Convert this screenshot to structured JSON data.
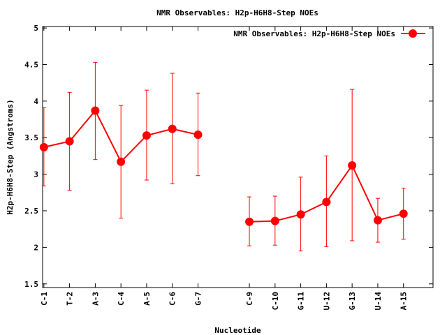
{
  "chart_data": {
    "type": "line",
    "title": "NMR Observables: H2p-H6H8-Step NOEs",
    "xlabel": "Nucleotide",
    "ylabel": "H2p-H6H8-Step (Angstroms)",
    "ylim": [
      1.45,
      5.02
    ],
    "yticks": [
      "1.5",
      "2",
      "2.5",
      "3",
      "3.5",
      "4",
      "4.5",
      "5"
    ],
    "ytick_values": [
      1.5,
      2,
      2.5,
      3,
      3.5,
      4,
      4.5,
      5
    ],
    "xlim": [
      0.95,
      16.15
    ],
    "legend_position": "top-right",
    "grid": false,
    "color": "#ff0000",
    "series": [
      {
        "name": "NMR Observables: H2p-H6H8-Step NOEs",
        "points": [
          {
            "x": 1,
            "label": "C-1",
            "y": 3.37,
            "low": 2.84,
            "high": 3.91
          },
          {
            "x": 2,
            "label": "T-2",
            "y": 3.45,
            "low": 2.78,
            "high": 4.12
          },
          {
            "x": 3,
            "label": "A-3",
            "y": 3.87,
            "low": 3.2,
            "high": 4.53
          },
          {
            "x": 4,
            "label": "C-4",
            "y": 3.17,
            "low": 2.4,
            "high": 3.94
          },
          {
            "x": 5,
            "label": "A-5",
            "y": 3.53,
            "low": 2.92,
            "high": 4.15
          },
          {
            "x": 6,
            "label": "C-6",
            "y": 3.62,
            "low": 2.87,
            "high": 4.38
          },
          {
            "x": 7,
            "label": "G-7",
            "y": 3.54,
            "low": 2.98,
            "high": 4.11
          },
          {
            "x": 9,
            "label": "C-9",
            "y": 2.35,
            "low": 2.02,
            "high": 2.69
          },
          {
            "x": 10,
            "label": "C-10",
            "y": 2.36,
            "low": 2.03,
            "high": 2.7
          },
          {
            "x": 11,
            "label": "G-11",
            "y": 2.45,
            "low": 1.95,
            "high": 2.96
          },
          {
            "x": 12,
            "label": "U-12",
            "y": 2.62,
            "low": 2.01,
            "high": 3.25
          },
          {
            "x": 13,
            "label": "G-13",
            "y": 3.12,
            "low": 2.09,
            "high": 4.16
          },
          {
            "x": 14,
            "label": "U-14",
            "y": 2.37,
            "low": 2.07,
            "high": 2.67
          },
          {
            "x": 15,
            "label": "A-15",
            "y": 2.46,
            "low": 2.11,
            "high": 2.81
          }
        ]
      }
    ]
  }
}
